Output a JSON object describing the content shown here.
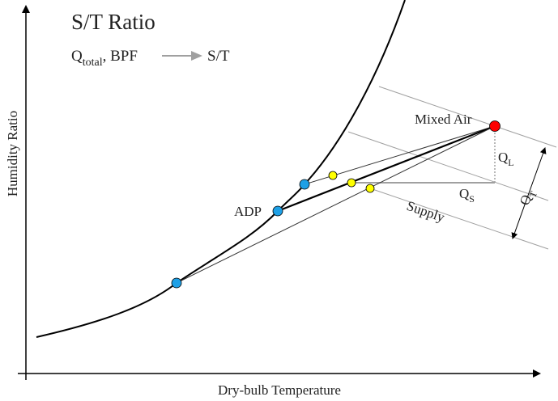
{
  "title": "S/T Ratio",
  "subtitle": {
    "q": "Q",
    "q_sub": "total",
    "rest": ", BPF",
    "result": "S/T"
  },
  "axes": {
    "y_label": "Humidity Ratio",
    "x_label": "Dry-bulb Temperature"
  },
  "labels": {
    "mixed_air": "Mixed Air",
    "adp": "ADP",
    "supply": "Supply",
    "ql": "Q",
    "ql_sub": "L",
    "qs": "Q",
    "qs_sub": "S",
    "qt": "Q",
    "qt_sub": "T"
  },
  "colors": {
    "mixed_air_point": "#ff0000",
    "saturation_points": "#1ea0e6",
    "supply_points": "#ffff00",
    "guide_lines": "#a0a0a0"
  }
}
